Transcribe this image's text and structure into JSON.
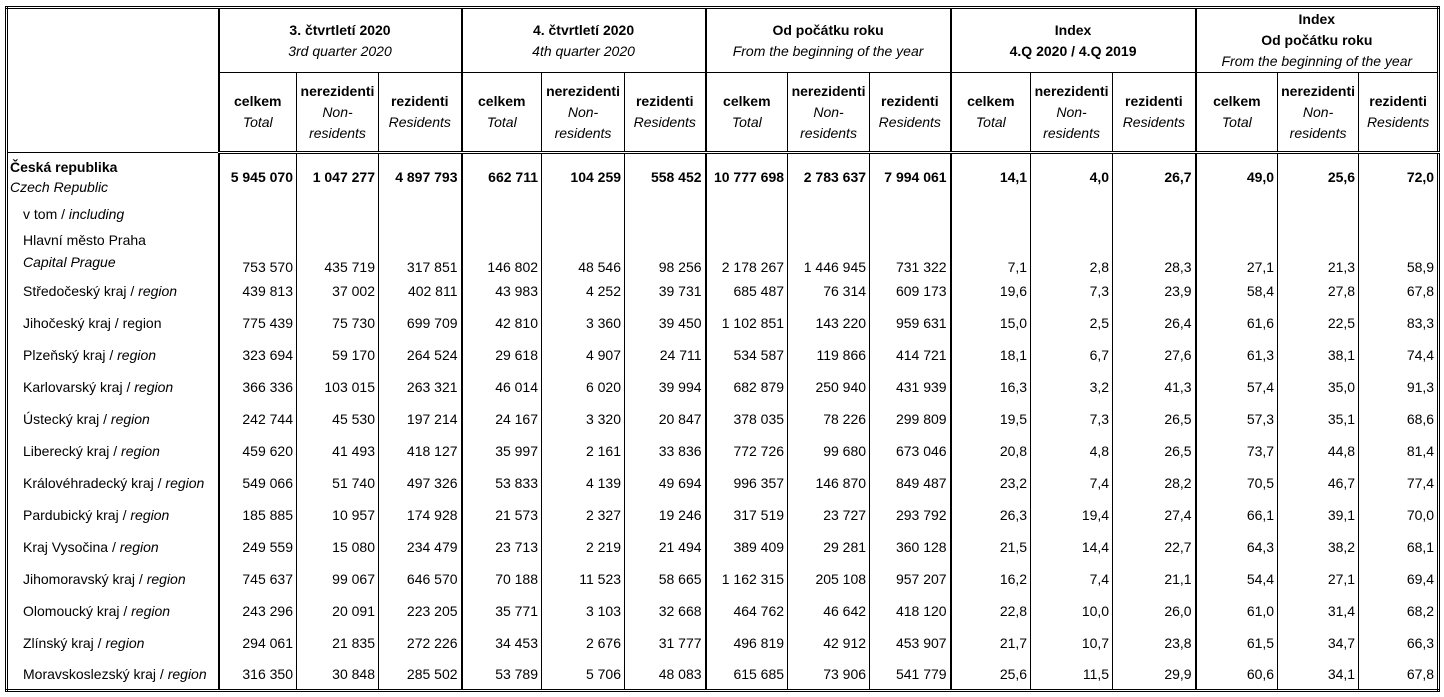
{
  "header": {
    "groups": [
      {
        "lines": [
          {
            "text": "3. čtvrtletí 2020",
            "style": "bold"
          },
          {
            "text": "3rd quarter 2020",
            "style": "italic"
          }
        ]
      },
      {
        "lines": [
          {
            "text": "4. čtvrtletí 2020",
            "style": "bold"
          },
          {
            "text": "4th quarter 2020",
            "style": "italic"
          }
        ]
      },
      {
        "lines": [
          {
            "text": "Od počátku roku",
            "style": "bold"
          },
          {
            "text": "From the beginning of the year",
            "style": "italic"
          }
        ]
      },
      {
        "lines": [
          {
            "text": "Index",
            "style": "bold"
          },
          {
            "text": "4.Q 2020 / 4.Q 2019",
            "style": "bold"
          }
        ]
      },
      {
        "lines": [
          {
            "text": "Index",
            "style": "bold"
          },
          {
            "text": "Od počátku roku",
            "style": "bold"
          },
          {
            "text": "From the beginning of the year",
            "style": "italic"
          }
        ]
      }
    ],
    "columns": [
      {
        "cs": "celkem",
        "en": "Total"
      },
      {
        "cs": "nerezidenti",
        "en": "Non-residents"
      },
      {
        "cs": "rezidenti",
        "en": "Residents"
      }
    ]
  },
  "rows": [
    {
      "cs": "Česká republika",
      "en": "Czech Republic",
      "bold": true,
      "values": [
        "5 945 070",
        "1 047 277",
        "4 897 793",
        "662 711",
        "104 259",
        "558 452",
        "10 777 698",
        "2 783 637",
        "7 994 061",
        "14,1",
        "4,0",
        "26,7",
        "49,0",
        "25,6",
        "72,0"
      ]
    },
    {
      "cs": "v tom /",
      "en": "including",
      "inline": true,
      "values": []
    },
    {
      "cs": "Hlavní město Praha",
      "en": "Capital Prague",
      "values": [
        "753 570",
        "435 719",
        "317 851",
        "146 802",
        "48 546",
        "98 256",
        "2 178 267",
        "1 446 945",
        "731 322",
        "7,1",
        "2,8",
        "28,3",
        "27,1",
        "21,3",
        "58,9"
      ]
    },
    {
      "cs": "Středočeský kraj /",
      "en": "region",
      "inline": true,
      "values": [
        "439 813",
        "37 002",
        "402 811",
        "43 983",
        "4 252",
        "39 731",
        "685 487",
        "76 314",
        "609 173",
        "19,6",
        "7,3",
        "23,9",
        "58,4",
        "27,8",
        "67,8"
      ]
    },
    {
      "cs": "Jihočeský kraj / region",
      "values": [
        "775 439",
        "75 730",
        "699 709",
        "42 810",
        "3 360",
        "39 450",
        "1 102 851",
        "143 220",
        "959 631",
        "15,0",
        "2,5",
        "26,4",
        "61,6",
        "22,5",
        "83,3"
      ]
    },
    {
      "cs": "Plzeňský kraj /",
      "en": "region",
      "inline": true,
      "values": [
        "323 694",
        "59 170",
        "264 524",
        "29 618",
        "4 907",
        "24 711",
        "534 587",
        "119 866",
        "414 721",
        "18,1",
        "6,7",
        "27,6",
        "61,3",
        "38,1",
        "74,4"
      ]
    },
    {
      "cs": "Karlovarský kraj /",
      "en": "region",
      "inline": true,
      "values": [
        "366 336",
        "103 015",
        "263 321",
        "46 014",
        "6 020",
        "39 994",
        "682 879",
        "250 940",
        "431 939",
        "16,3",
        "3,2",
        "41,3",
        "57,4",
        "35,0",
        "91,3"
      ]
    },
    {
      "cs": "Ústecký kraj /",
      "en": "region",
      "inline": true,
      "values": [
        "242 744",
        "45 530",
        "197 214",
        "24 167",
        "3 320",
        "20 847",
        "378 035",
        "78 226",
        "299 809",
        "19,5",
        "7,3",
        "26,5",
        "57,3",
        "35,1",
        "68,6"
      ]
    },
    {
      "cs": "Liberecký kraj /",
      "en": "region",
      "inline": true,
      "values": [
        "459 620",
        "41 493",
        "418 127",
        "35 997",
        "2 161",
        "33 836",
        "772 726",
        "99 680",
        "673 046",
        "20,8",
        "4,8",
        "26,5",
        "73,7",
        "44,8",
        "81,4"
      ]
    },
    {
      "cs": "Královéhradecký kraj /",
      "en": "region",
      "inline": true,
      "values": [
        "549 066",
        "51 740",
        "497 326",
        "53 833",
        "4 139",
        "49 694",
        "996 357",
        "146 870",
        "849 487",
        "23,2",
        "7,4",
        "28,2",
        "70,5",
        "46,7",
        "77,4"
      ]
    },
    {
      "cs": "Pardubický kraj /",
      "en": "region",
      "inline": true,
      "values": [
        "185 885",
        "10 957",
        "174 928",
        "21 573",
        "2 327",
        "19 246",
        "317 519",
        "23 727",
        "293 792",
        "26,3",
        "19,4",
        "27,4",
        "66,1",
        "39,1",
        "70,0"
      ]
    },
    {
      "cs": "Kraj Vysočina /",
      "en": "region",
      "inline": true,
      "values": [
        "249 559",
        "15 080",
        "234 479",
        "23 713",
        "2 219",
        "21 494",
        "389 409",
        "29 281",
        "360 128",
        "21,5",
        "14,4",
        "22,7",
        "64,3",
        "38,2",
        "68,1"
      ]
    },
    {
      "cs": "Jihomoravský kraj /",
      "en": "region",
      "inline": true,
      "values": [
        "745 637",
        "99 067",
        "646 570",
        "70 188",
        "11 523",
        "58 665",
        "1 162 315",
        "205 108",
        "957 207",
        "16,2",
        "7,4",
        "21,1",
        "54,4",
        "27,1",
        "69,4"
      ]
    },
    {
      "cs": "Olomoucký kraj /",
      "en": "region",
      "inline": true,
      "values": [
        "243 296",
        "20 091",
        "223 205",
        "35 771",
        "3 103",
        "32 668",
        "464 762",
        "46 642",
        "418 120",
        "22,8",
        "10,0",
        "26,0",
        "61,0",
        "31,4",
        "68,2"
      ]
    },
    {
      "cs": "Zlínský kraj /",
      "en": "region",
      "inline": true,
      "values": [
        "294 061",
        "21 835",
        "272 226",
        "34 453",
        "2 676",
        "31 777",
        "496 819",
        "42 912",
        "453 907",
        "21,7",
        "10,7",
        "23,8",
        "61,5",
        "34,7",
        "66,3"
      ]
    },
    {
      "cs": "Moravskoslezský kraj /",
      "en": "region",
      "inline": true,
      "values": [
        "316 350",
        "30 848",
        "285 502",
        "53 789",
        "5 706",
        "48 083",
        "615 685",
        "73 906",
        "541 779",
        "25,6",
        "11,5",
        "29,9",
        "60,6",
        "34,1",
        "67,8"
      ]
    }
  ]
}
